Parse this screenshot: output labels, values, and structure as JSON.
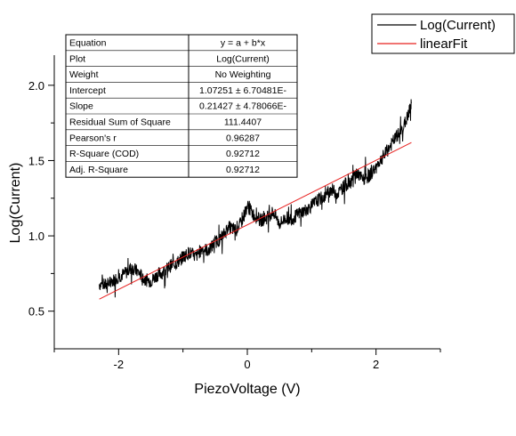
{
  "chart_data": {
    "type": "line",
    "xlabel": "PiezoVoltage (V)",
    "ylabel": "Log(Current)",
    "xlim": [
      -3,
      3
    ],
    "ylim": [
      0.25,
      2.2
    ],
    "x_ticks": [
      -2,
      0,
      2
    ],
    "x_tick_labels": [
      "-2",
      "0",
      "2"
    ],
    "y_ticks": [
      0.5,
      1.0,
      1.5,
      2.0
    ],
    "y_tick_labels": [
      "0.5",
      "1.0",
      "1.5",
      "2.0"
    ],
    "grid": false,
    "legend_position": "top-right",
    "series": [
      {
        "name": "Log(Current)",
        "color": "#000000",
        "x": [
          -2.3,
          -2.2,
          -2.1,
          -2.0,
          -1.9,
          -1.8,
          -1.7,
          -1.6,
          -1.5,
          -1.4,
          -1.3,
          -1.2,
          -1.1,
          -1.0,
          -0.9,
          -0.8,
          -0.7,
          -0.6,
          -0.5,
          -0.4,
          -0.3,
          -0.2,
          -0.1,
          0.0,
          0.1,
          0.2,
          0.3,
          0.4,
          0.5,
          0.6,
          0.7,
          0.8,
          0.9,
          1.0,
          1.1,
          1.2,
          1.3,
          1.4,
          1.5,
          1.6,
          1.7,
          1.8,
          1.9,
          2.0,
          2.1,
          2.2,
          2.3,
          2.4,
          2.5,
          2.55
        ],
        "y": [
          0.68,
          0.67,
          0.7,
          0.73,
          0.75,
          0.79,
          0.76,
          0.71,
          0.7,
          0.74,
          0.76,
          0.8,
          0.82,
          0.86,
          0.89,
          0.86,
          0.92,
          0.9,
          0.96,
          0.98,
          1.06,
          1.04,
          1.08,
          1.2,
          1.14,
          1.1,
          1.12,
          1.16,
          1.08,
          1.12,
          1.11,
          1.15,
          1.17,
          1.2,
          1.24,
          1.26,
          1.31,
          1.28,
          1.33,
          1.36,
          1.42,
          1.37,
          1.4,
          1.46,
          1.52,
          1.58,
          1.65,
          1.7,
          1.8,
          1.88
        ]
      },
      {
        "name": "linearFit",
        "color": "#e8201f",
        "x": [
          -2.3,
          2.55
        ],
        "y": [
          0.58,
          1.62
        ]
      }
    ],
    "stats_table": [
      [
        "Equation",
        "y = a + b*x"
      ],
      [
        "Plot",
        "Log(Current)"
      ],
      [
        "Weight",
        "No Weighting"
      ],
      [
        "Intercept",
        "1.07251 ± 6.70481E-"
      ],
      [
        "Slope",
        "0.21427 ± 4.78066E-"
      ],
      [
        "Residual Sum of Square",
        "111.4407"
      ],
      [
        "Pearson's r",
        "0.96287"
      ],
      [
        "R-Square (COD)",
        "0.92712"
      ],
      [
        "Adj. R-Square",
        "0.92712"
      ]
    ]
  }
}
